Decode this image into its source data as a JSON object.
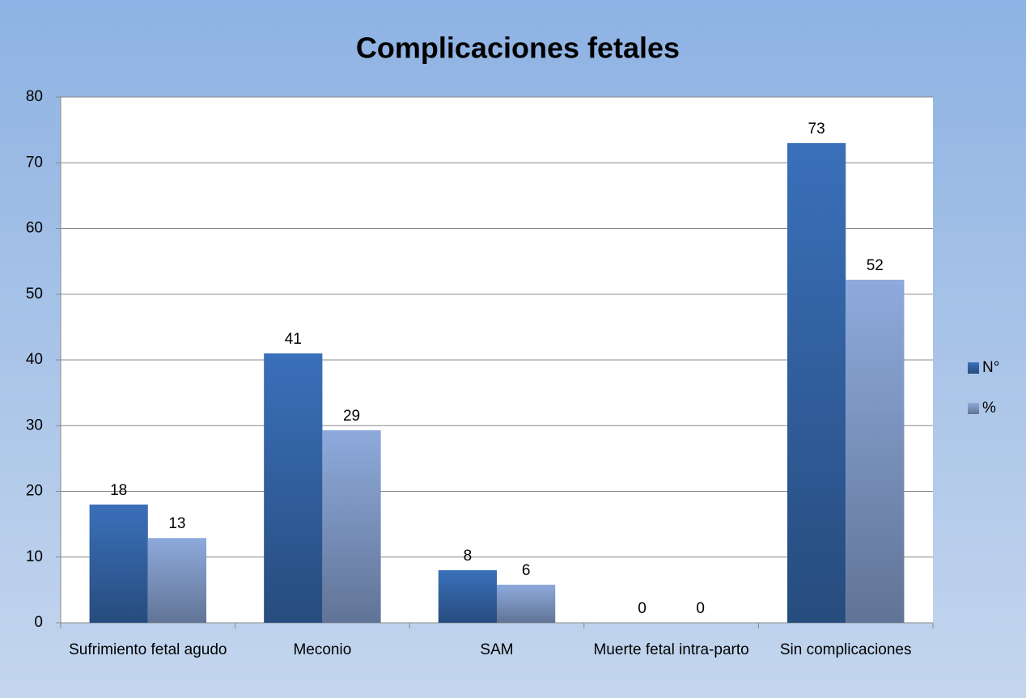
{
  "chart_data": {
    "type": "bar",
    "title": "Complicaciones fetales",
    "categories": [
      "Sufrimiento fetal agudo",
      "Meconio",
      "SAM",
      "Muerte fetal intra-parto",
      "Sin complicaciones"
    ],
    "series": [
      {
        "name": "N°",
        "color": "#3a70ba",
        "values": [
          18,
          41,
          8,
          0,
          73
        ],
        "value_labels": [
          "18",
          "41",
          "8",
          "0",
          "73"
        ]
      },
      {
        "name": "%",
        "color": "#8eaadc",
        "values": [
          12.9,
          29.3,
          5.8,
          0,
          52.2
        ],
        "value_labels": [
          "13",
          "29",
          "6",
          "0",
          "52"
        ]
      }
    ],
    "ylim": [
      0,
      80
    ],
    "yticks": [
      0,
      10,
      20,
      30,
      40,
      50,
      60,
      70,
      80
    ],
    "grid": true,
    "legend": "right"
  }
}
